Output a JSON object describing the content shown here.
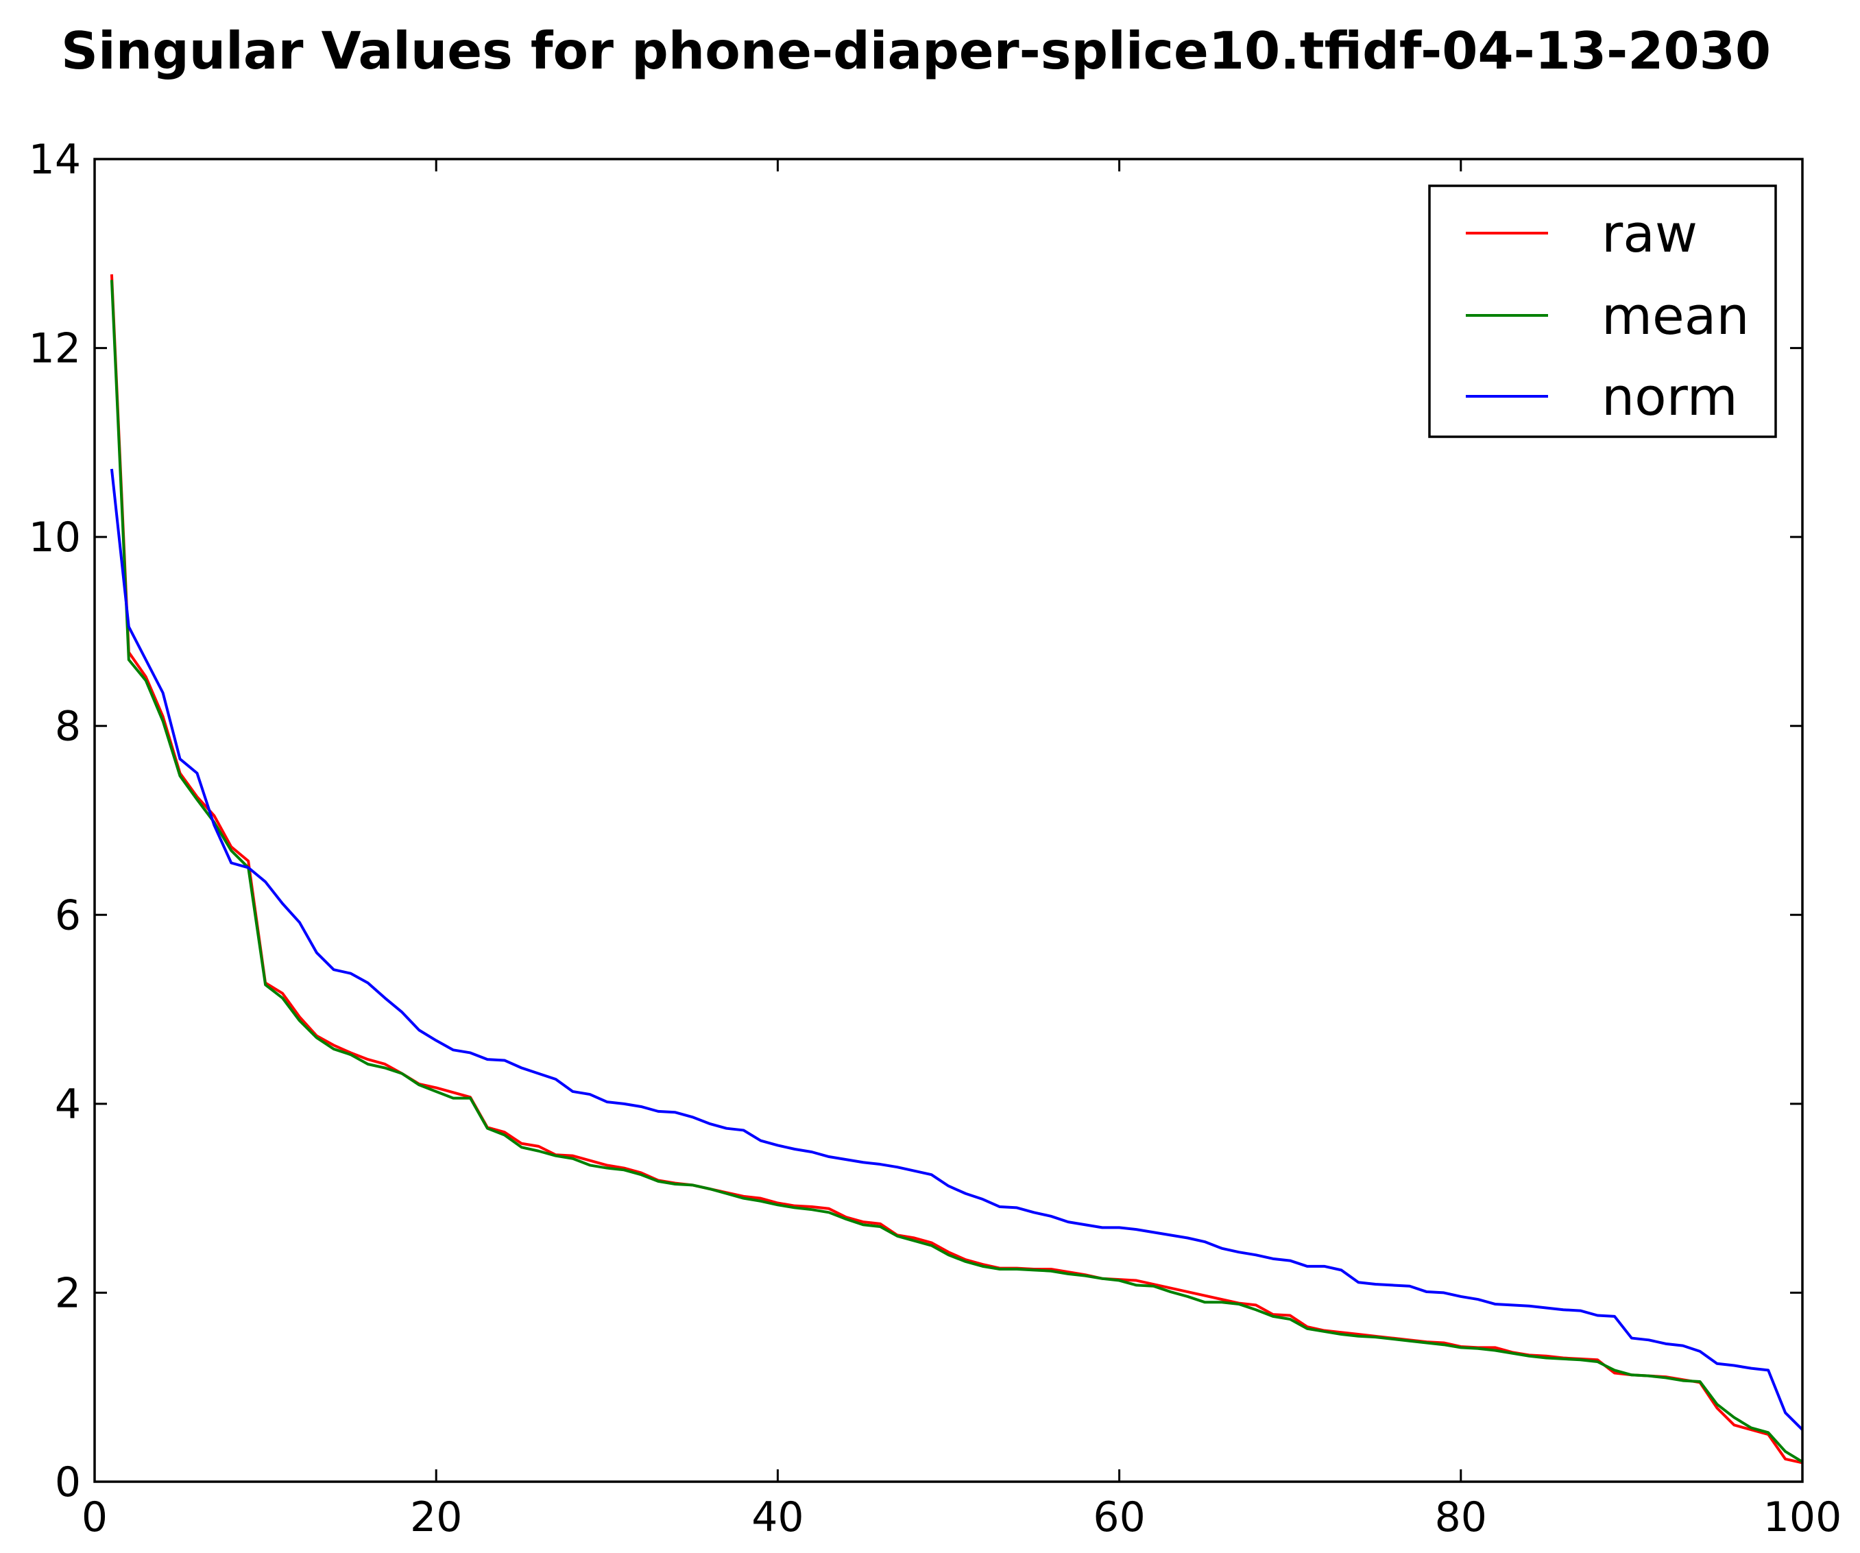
{
  "chart_data": {
    "type": "line",
    "title": "Singular Values for phone-diaper-splice10.tfidf-04-13-2030",
    "xlabel": "",
    "ylabel": "",
    "xlim": [
      0,
      100
    ],
    "ylim": [
      0,
      14
    ],
    "x_ticks": [
      "0",
      "20",
      "40",
      "60",
      "80",
      "100"
    ],
    "y_ticks": [
      "0",
      "2",
      "4",
      "6",
      "8",
      "10",
      "12",
      "14"
    ],
    "grid": false,
    "legend_position": "top-right",
    "x": [
      1,
      2,
      3,
      4,
      5,
      6,
      7,
      8,
      9,
      10,
      11,
      12,
      13,
      14,
      15,
      16,
      17,
      18,
      19,
      20,
      21,
      22,
      23,
      24,
      25,
      26,
      27,
      28,
      29,
      30,
      31,
      32,
      33,
      34,
      35,
      36,
      37,
      38,
      39,
      40,
      41,
      42,
      43,
      44,
      45,
      46,
      47,
      48,
      49,
      50,
      51,
      52,
      53,
      54,
      55,
      56,
      57,
      58,
      59,
      60,
      61,
      62,
      63,
      64,
      65,
      66,
      67,
      68,
      69,
      70,
      71,
      72,
      73,
      74,
      75,
      76,
      77,
      78,
      79,
      80,
      81,
      82,
      83,
      84,
      85,
      86,
      87,
      88,
      89,
      90,
      91,
      92,
      93,
      94,
      95,
      96,
      97,
      98,
      99,
      100
    ],
    "series": [
      {
        "name": "raw",
        "color": "#ff0000",
        "values": [
          12.78,
          8.78,
          8.52,
          8.1,
          7.5,
          7.25,
          7.05,
          6.72,
          6.57,
          5.28,
          5.17,
          4.92,
          4.72,
          4.62,
          4.54,
          4.47,
          4.42,
          4.32,
          4.21,
          4.17,
          4.12,
          4.07,
          3.75,
          3.7,
          3.58,
          3.55,
          3.46,
          3.45,
          3.4,
          3.35,
          3.32,
          3.27,
          3.19,
          3.16,
          3.14,
          3.1,
          3.06,
          3.02,
          3.0,
          2.95,
          2.92,
          2.91,
          2.89,
          2.8,
          2.75,
          2.73,
          2.61,
          2.58,
          2.53,
          2.43,
          2.35,
          2.3,
          2.26,
          2.26,
          2.25,
          2.25,
          2.22,
          2.19,
          2.15,
          2.14,
          2.13,
          2.09,
          2.05,
          2.01,
          1.97,
          1.93,
          1.89,
          1.87,
          1.77,
          1.76,
          1.64,
          1.6,
          1.58,
          1.56,
          1.54,
          1.52,
          1.5,
          1.48,
          1.47,
          1.43,
          1.42,
          1.42,
          1.37,
          1.34,
          1.33,
          1.31,
          1.3,
          1.29,
          1.15,
          1.13,
          1.12,
          1.11,
          1.08,
          1.05,
          0.78,
          0.6,
          0.55,
          0.5,
          0.24,
          0.2
        ]
      },
      {
        "name": "mean",
        "color": "#008000",
        "values": [
          12.72,
          8.7,
          8.48,
          8.05,
          7.47,
          7.22,
          6.98,
          6.68,
          6.5,
          5.26,
          5.12,
          4.88,
          4.7,
          4.58,
          4.52,
          4.42,
          4.38,
          4.32,
          4.2,
          4.13,
          4.06,
          4.06,
          3.74,
          3.67,
          3.54,
          3.5,
          3.45,
          3.42,
          3.35,
          3.32,
          3.3,
          3.25,
          3.18,
          3.15,
          3.14,
          3.1,
          3.05,
          3.0,
          2.97,
          2.93,
          2.9,
          2.88,
          2.85,
          2.78,
          2.72,
          2.7,
          2.6,
          2.55,
          2.5,
          2.4,
          2.33,
          2.28,
          2.25,
          2.25,
          2.24,
          2.23,
          2.2,
          2.18,
          2.15,
          2.13,
          2.08,
          2.07,
          2.01,
          1.96,
          1.9,
          1.9,
          1.88,
          1.82,
          1.75,
          1.72,
          1.62,
          1.59,
          1.56,
          1.54,
          1.53,
          1.51,
          1.49,
          1.47,
          1.45,
          1.42,
          1.41,
          1.39,
          1.36,
          1.33,
          1.31,
          1.3,
          1.29,
          1.27,
          1.18,
          1.13,
          1.12,
          1.1,
          1.07,
          1.06,
          0.82,
          0.68,
          0.57,
          0.52,
          0.32,
          0.21
        ]
      },
      {
        "name": "norm",
        "color": "#0000ff",
        "values": [
          10.72,
          9.05,
          8.7,
          8.35,
          7.65,
          7.5,
          6.95,
          6.55,
          6.5,
          6.35,
          6.12,
          5.92,
          5.6,
          5.42,
          5.38,
          5.28,
          5.12,
          4.97,
          4.78,
          4.67,
          4.57,
          4.54,
          4.47,
          4.46,
          4.38,
          4.32,
          4.26,
          4.13,
          4.1,
          4.02,
          4.0,
          3.97,
          3.92,
          3.91,
          3.86,
          3.79,
          3.74,
          3.72,
          3.61,
          3.56,
          3.52,
          3.49,
          3.44,
          3.41,
          3.38,
          3.36,
          3.33,
          3.29,
          3.25,
          3.13,
          3.05,
          2.99,
          2.91,
          2.9,
          2.85,
          2.81,
          2.75,
          2.72,
          2.69,
          2.69,
          2.67,
          2.64,
          2.61,
          2.58,
          2.54,
          2.47,
          2.43,
          2.4,
          2.36,
          2.34,
          2.28,
          2.28,
          2.24,
          2.11,
          2.09,
          2.08,
          2.07,
          2.01,
          2.0,
          1.96,
          1.93,
          1.88,
          1.87,
          1.86,
          1.84,
          1.82,
          1.81,
          1.76,
          1.75,
          1.52,
          1.5,
          1.46,
          1.44,
          1.38,
          1.25,
          1.23,
          1.2,
          1.18,
          0.73,
          0.55
        ]
      }
    ]
  }
}
